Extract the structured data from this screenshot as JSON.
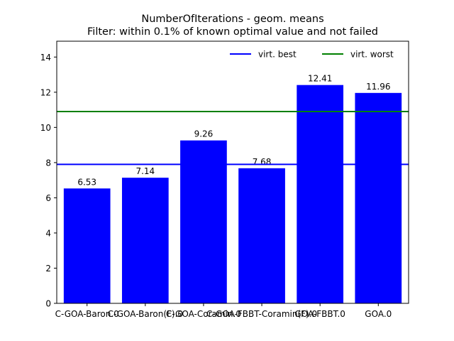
{
  "chart_data": {
    "type": "bar",
    "title": "NumberOfIterations - geom. means",
    "subtitle": "Filter: within 0.1% of known optimal value and not failed",
    "xlabel": "",
    "ylabel": "",
    "categories": [
      "C-GOA-Baron.0",
      "C-GOA-Baron(F).0",
      "C-GOA-Coramin.0",
      "C-GOA-FBBT-Coramin(F).0",
      "GOA-FBBT.0",
      "GOA.0"
    ],
    "values": [
      6.53,
      7.14,
      9.26,
      7.68,
      12.41,
      11.96
    ],
    "data_labels": [
      "6.53",
      "7.14",
      "9.26",
      "7.68",
      "12.41",
      "11.96"
    ],
    "bar_color": "#0000ff",
    "ylim": [
      0,
      14.9
    ],
    "yticks": [
      0,
      2,
      4,
      6,
      8,
      10,
      12,
      14
    ],
    "grid": false,
    "reference_lines": [
      {
        "name": "virt. best",
        "value": 7.9,
        "color": "#0000ff"
      },
      {
        "name": "virt. worst",
        "value": 10.9,
        "color": "#008000"
      }
    ],
    "legend": {
      "placement": "top-right",
      "entries": [
        "virt. best",
        "virt. worst"
      ]
    }
  }
}
